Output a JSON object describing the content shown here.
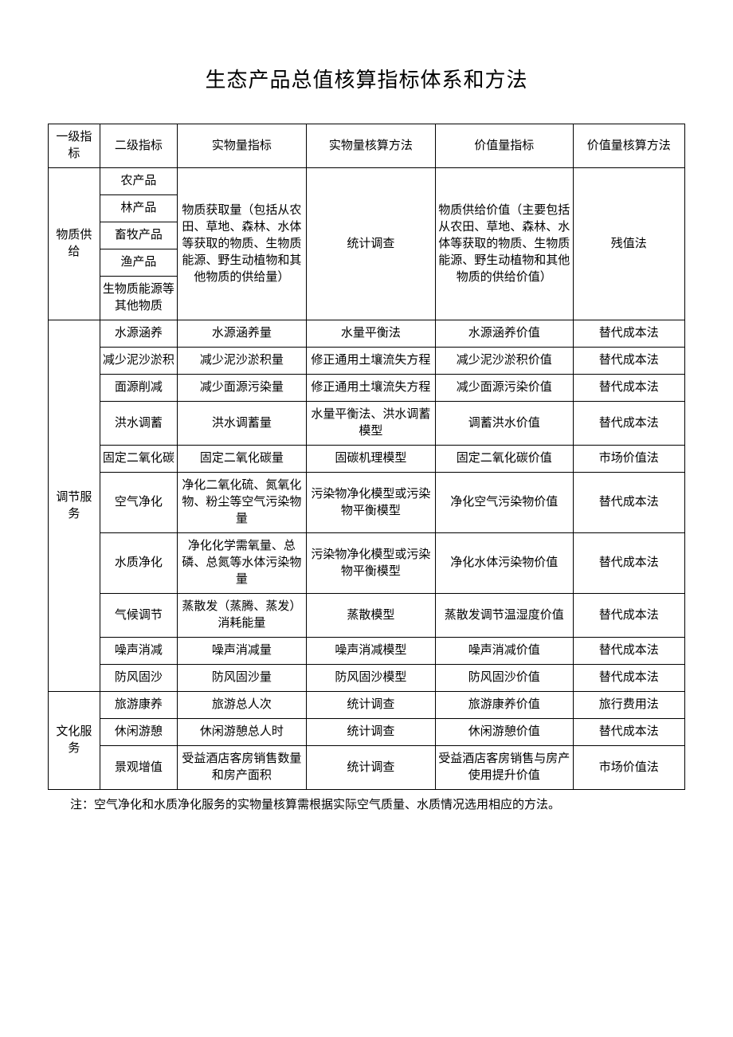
{
  "title": "生态产品总值核算指标体系和方法",
  "headers": {
    "col1": "一级指标",
    "col2": "二级指标",
    "col3": "实物量指标",
    "col4": "实物量核算方法",
    "col5": "价值量指标",
    "col6": "价值量核算方法"
  },
  "group1": {
    "name": "物质供给",
    "items": {
      "r1": "农产品",
      "r2": "林产品",
      "r3": "畜牧产品",
      "r4": "渔产品",
      "r5": "生物质能源等其他物质"
    },
    "col3": "物质获取量（包括从农田、草地、森林、水体等获取的物质、生物质能源、野生动植物和其他物质的供给量）",
    "col4": "统计调查",
    "col5": "物质供给价值（主要包括从农田、草地、森林、水体等获取的物质、生物质能源、野生动植物和其他物质的供给价值）",
    "col6": "残值法"
  },
  "group2": {
    "name": "调节服务",
    "rows": {
      "r1": {
        "c2": "水源涵养",
        "c3": "水源涵养量",
        "c4": "水量平衡法",
        "c5": "水源涵养价值",
        "c6": "替代成本法"
      },
      "r2": {
        "c2": "减少泥沙淤积",
        "c3": "减少泥沙淤积量",
        "c4": "修正通用土壤流失方程",
        "c5": "减少泥沙淤积价值",
        "c6": "替代成本法"
      },
      "r3": {
        "c2": "面源削减",
        "c3": "减少面源污染量",
        "c4": "修正通用土壤流失方程",
        "c5": "减少面源污染价值",
        "c6": "替代成本法"
      },
      "r4": {
        "c2": "洪水调蓄",
        "c3": "洪水调蓄量",
        "c4": "水量平衡法、洪水调蓄模型",
        "c5": "调蓄洪水价值",
        "c6": "替代成本法"
      },
      "r5": {
        "c2": "固定二氧化碳",
        "c3": "固定二氧化碳量",
        "c4": "固碳机理模型",
        "c5": "固定二氧化碳价值",
        "c6": "市场价值法"
      },
      "r6": {
        "c2": "空气净化",
        "c3": "净化二氧化硫、氮氧化物、粉尘等空气污染物量",
        "c4": "污染物净化模型或污染物平衡模型",
        "c5": "净化空气污染物价值",
        "c6": "替代成本法"
      },
      "r7": {
        "c2": "水质净化",
        "c3": "净化化学需氧量、总磷、总氮等水体污染物量",
        "c4": "污染物净化模型或污染物平衡模型",
        "c5": "净化水体污染物价值",
        "c6": "替代成本法"
      },
      "r8": {
        "c2": "气候调节",
        "c3": "蒸散发（蒸腾、蒸发）消耗能量",
        "c4": "蒸散模型",
        "c5": "蒸散发调节温湿度价值",
        "c6": "替代成本法"
      },
      "r9": {
        "c2": "噪声消减",
        "c3": "噪声消减量",
        "c4": "噪声消减模型",
        "c5": "噪声消减价值",
        "c6": "替代成本法"
      },
      "r10": {
        "c2": "防风固沙",
        "c3": "防风固沙量",
        "c4": "防风固沙模型",
        "c5": "防风固沙价值",
        "c6": "替代成本法"
      }
    }
  },
  "group3": {
    "name": "文化服务",
    "rows": {
      "r1": {
        "c2": "旅游康养",
        "c3": "旅游总人次",
        "c4": "统计调查",
        "c5": "旅游康养价值",
        "c6": "旅行费用法"
      },
      "r2": {
        "c2": "休闲游憩",
        "c3": "休闲游憩总人时",
        "c4": "统计调查",
        "c5": "休闲游憩价值",
        "c6": "替代成本法"
      },
      "r3": {
        "c2": "景观增值",
        "c3": "受益酒店客房销售数量和房产面积",
        "c4": "统计调查",
        "c5": "受益酒店客房销售与房产使用提升价值",
        "c6": "市场价值法"
      }
    }
  },
  "note": "注：空气净化和水质净化服务的实物量核算需根据实际空气质量、水质情况选用相应的方法。"
}
